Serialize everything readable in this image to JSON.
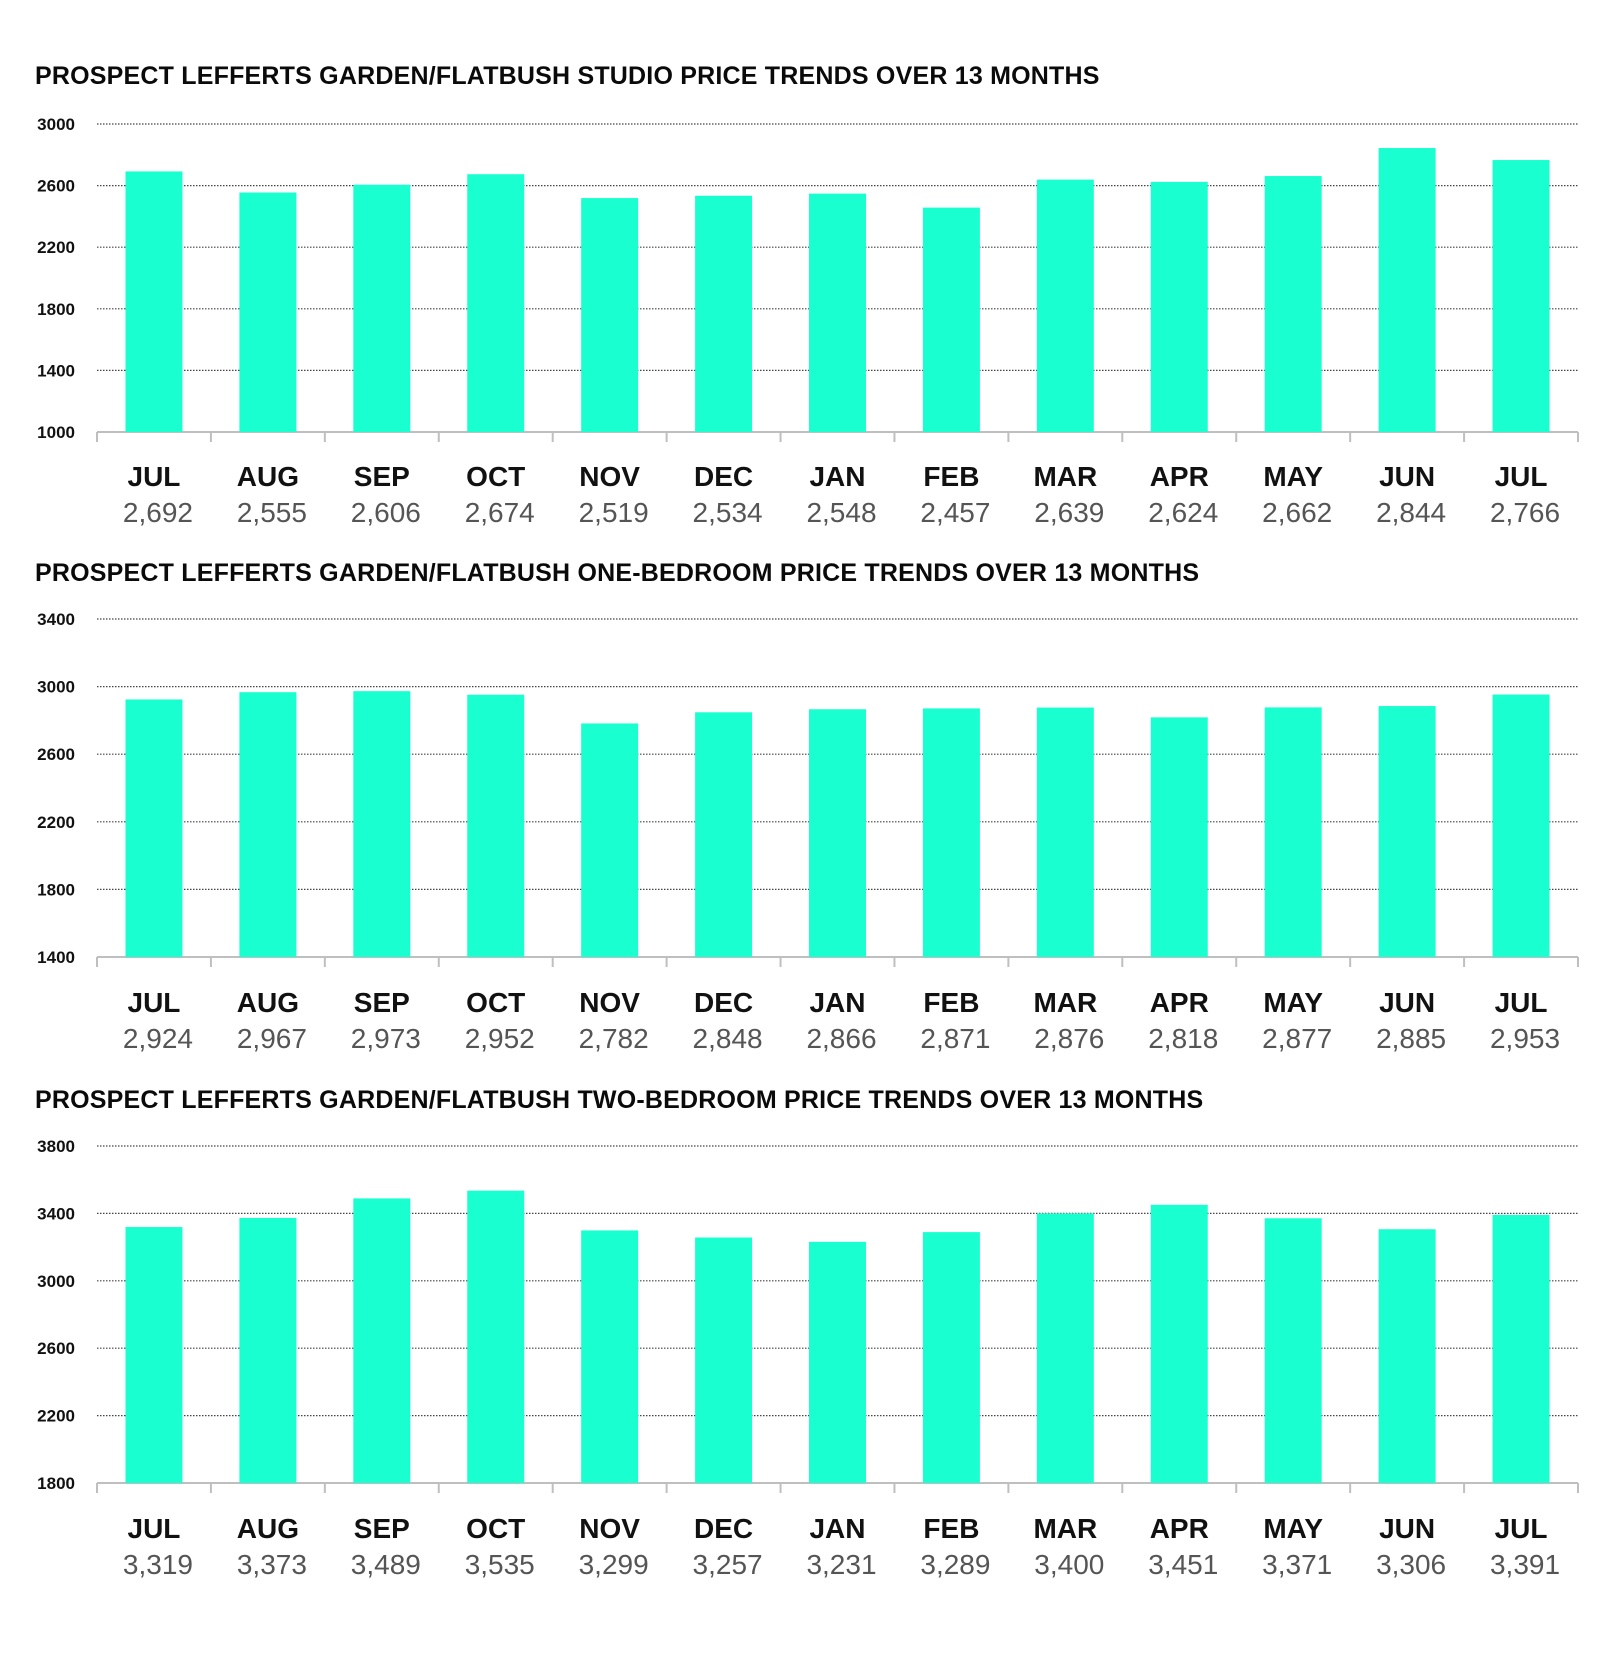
{
  "chart_data": [
    {
      "type": "bar",
      "title": "PROSPECT LEFFERTS GARDEN/FLATBUSH STUDIO PRICE TRENDS OVER 13 MONTHS",
      "categories": [
        "JUL",
        "AUG",
        "SEP",
        "OCT",
        "NOV",
        "DEC",
        "JAN",
        "FEB",
        "MAR",
        "APR",
        "MAY",
        "JUN",
        "JUL"
      ],
      "values": [
        2692,
        2555,
        2606,
        2674,
        2519,
        2534,
        2548,
        2457,
        2639,
        2624,
        2662,
        2844,
        2766
      ],
      "value_labels": [
        "2,692",
        "2,555",
        "2,606",
        "2,674",
        "2,519",
        "2,534",
        "2,548",
        "2,457",
        "2,639",
        "2,624",
        "2,662",
        "2,844",
        "2,766"
      ],
      "ylim": [
        1000,
        3000
      ],
      "yticks": [
        1000,
        1400,
        1800,
        2200,
        2600,
        3000
      ],
      "grid": true,
      "bar_color": "#1affcf",
      "xlabel": "",
      "ylabel": ""
    },
    {
      "type": "bar",
      "title": "PROSPECT LEFFERTS GARDEN/FLATBUSH ONE-BEDROOM PRICE TRENDS OVER 13 MONTHS",
      "categories": [
        "JUL",
        "AUG",
        "SEP",
        "OCT",
        "NOV",
        "DEC",
        "JAN",
        "FEB",
        "MAR",
        "APR",
        "MAY",
        "JUN",
        "JUL"
      ],
      "values": [
        2924,
        2967,
        2973,
        2952,
        2782,
        2848,
        2866,
        2871,
        2876,
        2818,
        2877,
        2885,
        2953
      ],
      "value_labels": [
        "2,924",
        "2,967",
        "2,973",
        "2,952",
        "2,782",
        "2,848",
        "2,866",
        "2,871",
        "2,876",
        "2,818",
        "2,877",
        "2,885",
        "2,953"
      ],
      "ylim": [
        1400,
        3400
      ],
      "yticks": [
        1400,
        1800,
        2200,
        2600,
        3000,
        3400
      ],
      "grid": true,
      "bar_color": "#1affcf",
      "xlabel": "",
      "ylabel": ""
    },
    {
      "type": "bar",
      "title": "PROSPECT LEFFERTS GARDEN/FLATBUSH TWO-BEDROOM PRICE TRENDS OVER 13 MONTHS",
      "categories": [
        "JUL",
        "AUG",
        "SEP",
        "OCT",
        "NOV",
        "DEC",
        "JAN",
        "FEB",
        "MAR",
        "APR",
        "MAY",
        "JUN",
        "JUL"
      ],
      "values": [
        3319,
        3373,
        3489,
        3535,
        3299,
        3257,
        3231,
        3289,
        3400,
        3451,
        3371,
        3306,
        3391
      ],
      "value_labels": [
        "3,319",
        "3,373",
        "3,489",
        "3,535",
        "3,299",
        "3,257",
        "3,231",
        "3,289",
        "3,400",
        "3,451",
        "3,371",
        "3,306",
        "3,391"
      ],
      "ylim": [
        1800,
        3800
      ],
      "yticks": [
        1800,
        2200,
        2600,
        3000,
        3400,
        3800
      ],
      "grid": true,
      "bar_color": "#1affcf",
      "xlabel": "",
      "ylabel": ""
    }
  ]
}
